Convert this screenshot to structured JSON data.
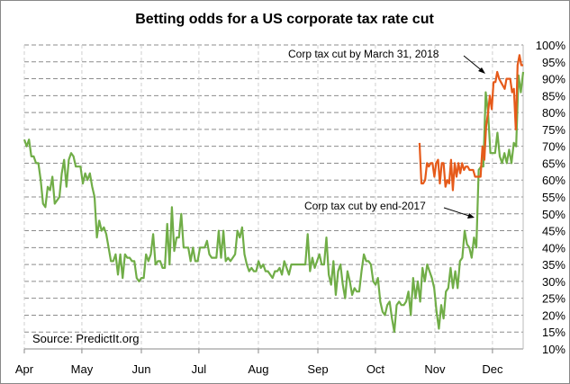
{
  "chart_data": {
    "type": "line",
    "title": "Betting odds for a US corporate tax rate cut",
    "source": "Source:  PredictIt.org",
    "xlabel": "",
    "ylabel": "",
    "x_unit": "days since Apr 1, 2017",
    "xlim": [
      0,
      260
    ],
    "ylim": [
      10,
      100
    ],
    "yticks": [
      10,
      15,
      20,
      25,
      30,
      35,
      40,
      45,
      50,
      55,
      60,
      65,
      70,
      75,
      80,
      85,
      90,
      95,
      100
    ],
    "ytick_labels": [
      "10%",
      "15%",
      "20%",
      "25%",
      "30%",
      "35%",
      "40%",
      "45%",
      "50%",
      "55%",
      "60%",
      "65%",
      "70%",
      "75%",
      "80%",
      "85%",
      "90%",
      "95%",
      "100%"
    ],
    "xticks": [
      0,
      30,
      61,
      91,
      122,
      153,
      183,
      214,
      244
    ],
    "xtick_labels": [
      "Apr",
      "May",
      "Jun",
      "Jul",
      "Aug",
      "Sep",
      "Oct",
      "Nov",
      "Dec"
    ],
    "grid": "dashed",
    "colors": {
      "end2017": "#70ad47",
      "march2018": "#e65a1a"
    },
    "annotations": [
      {
        "text": "Corp tax cut by March 31, 2018",
        "points_to": "March 31, 2018 series"
      },
      {
        "text": "Corp tax cut by end-2017",
        "points_to": "end-2017 series"
      }
    ],
    "series": [
      {
        "name": "Corp tax cut by end-2017",
        "start_day": 0,
        "end_day": 260,
        "values": [
          72,
          70,
          72,
          67,
          67,
          65,
          65,
          60,
          53,
          52,
          58,
          57,
          61,
          53,
          54,
          55,
          62,
          66,
          58,
          66,
          68,
          67,
          64,
          64,
          64,
          59,
          62,
          60,
          62,
          58,
          55,
          43,
          48,
          45,
          46,
          44,
          40,
          36,
          36,
          38,
          32,
          38,
          31,
          38,
          37,
          37,
          36,
          36,
          31,
          30,
          31,
          31,
          38,
          36,
          38,
          44,
          35,
          36,
          36,
          34,
          34,
          47,
          35,
          52,
          39,
          43,
          43,
          50,
          40,
          40,
          40,
          36,
          40,
          36,
          36,
          40,
          40,
          40,
          42,
          38,
          37,
          37,
          37,
          45,
          37,
          45,
          36,
          37,
          36,
          37,
          38,
          45,
          43,
          46,
          38,
          35,
          33,
          34,
          33,
          33,
          36,
          34,
          35,
          33,
          33,
          32,
          31,
          33,
          33,
          34,
          32,
          36,
          34,
          32,
          35,
          35,
          35,
          35,
          35,
          35,
          35,
          44,
          33,
          37,
          34,
          36,
          38,
          35,
          35,
          43,
          32,
          29,
          36,
          26,
          33,
          35,
          29,
          25,
          33,
          30,
          26,
          28,
          27,
          27,
          33,
          38,
          36,
          36,
          35,
          30,
          29,
          31,
          24,
          21,
          20,
          23,
          24,
          19,
          15,
          23,
          24,
          23,
          23,
          24,
          27,
          20,
          31,
          25,
          30,
          24,
          34,
          30,
          35,
          33,
          31,
          28,
          21,
          16,
          23,
          19,
          27,
          28,
          34,
          28,
          33,
          28,
          36,
          37,
          45,
          41,
          40,
          37,
          43,
          40,
          63,
          64,
          64,
          86,
          80,
          68,
          68,
          68,
          74,
          67,
          65,
          68,
          65,
          69,
          65,
          71,
          70,
          91,
          86,
          92
        ]
      },
      {
        "name": "Corp tax cut by March 31, 2018",
        "start_day": 206,
        "end_day": 260,
        "values": [
          71,
          59,
          59,
          60,
          65,
          64,
          65,
          65,
          61,
          65,
          66,
          59,
          65,
          65,
          58,
          60,
          59,
          66,
          57,
          65,
          61,
          65,
          62,
          65,
          63,
          64,
          64,
          63,
          63,
          63,
          61,
          61,
          61,
          61,
          70,
          66,
          76,
          80,
          85,
          81,
          89,
          89,
          92,
          90,
          89,
          88,
          87,
          90,
          90,
          90,
          86,
          87,
          75,
          94,
          97,
          94,
          94
        ]
      }
    ]
  }
}
